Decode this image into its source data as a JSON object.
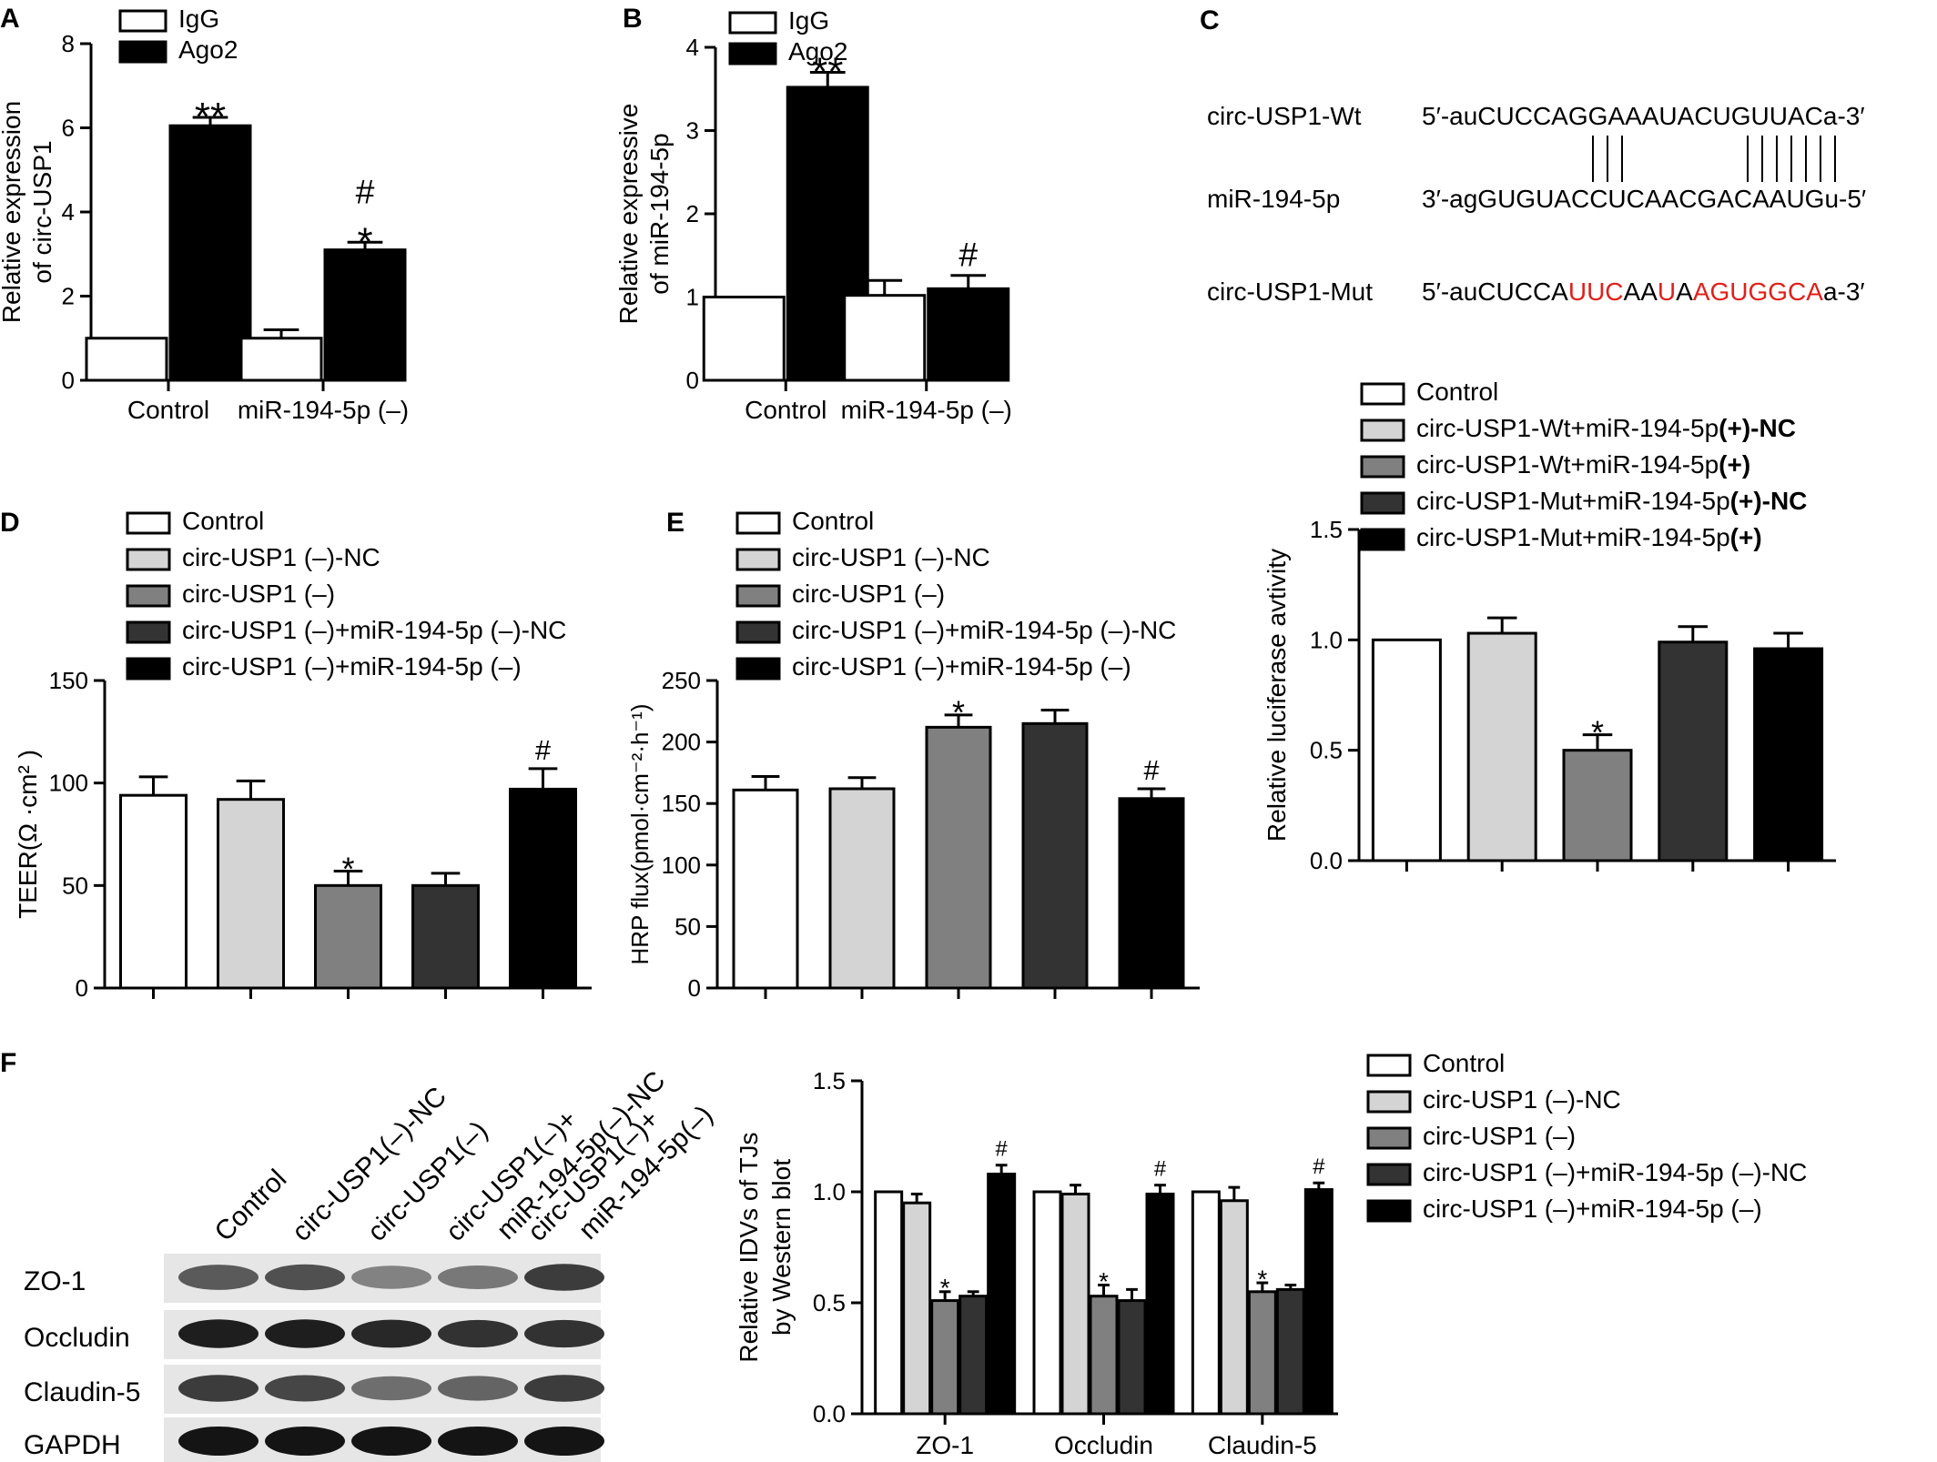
{
  "colors": {
    "white": "#ffffff",
    "light": "#d4d4d4",
    "mid": "#808080",
    "dark": "#333333",
    "black": "#000000",
    "mutation": "#e0201b"
  },
  "chart_data": [
    {
      "panel": "A",
      "type": "bar",
      "categories": [
        "Control",
        "miR-194-5p (–)"
      ],
      "series": [
        {
          "name": "IgG",
          "color": "#ffffff",
          "values": [
            1.0,
            1.0
          ],
          "err": [
            0,
            0.2
          ],
          "marks": [
            "",
            ""
          ]
        },
        {
          "name": "Ago2",
          "color": "#000000",
          "values": [
            6.05,
            3.1
          ],
          "err": [
            0.2,
            0.18
          ],
          "marks": [
            "**",
            "#\n*"
          ]
        }
      ],
      "ylabel": [
        "Relative expression",
        "of circ-USP1"
      ],
      "ylim": [
        0,
        8
      ],
      "yticks": [
        0,
        2,
        4,
        6,
        8
      ],
      "legend": "top-left"
    },
    {
      "panel": "B",
      "type": "bar",
      "categories": [
        "Control",
        "miR-194-5p (–)"
      ],
      "series": [
        {
          "name": "IgG",
          "color": "#ffffff",
          "values": [
            1.0,
            1.02
          ],
          "err": [
            0,
            0.18
          ],
          "marks": [
            "",
            ""
          ]
        },
        {
          "name": "Ago2",
          "color": "#000000",
          "values": [
            3.52,
            1.1
          ],
          "err": [
            0.18,
            0.16
          ],
          "marks": [
            "**",
            "#"
          ]
        }
      ],
      "ylabel": [
        "Relative expressive",
        "of miR-194-5p"
      ],
      "ylim": [
        0,
        4
      ],
      "yticks": [
        0,
        1,
        2,
        3,
        4
      ],
      "legend": "top-left"
    },
    {
      "panel": "D",
      "type": "bar",
      "categories": [
        "Control",
        "circ-USP1 (–)-NC",
        "circ-USP1 (–)",
        "circ-USP1 (–)+miR-194-5p (–)-NC",
        "circ-USP1 (–)+miR-194-5p (–)"
      ],
      "colors": [
        "#ffffff",
        "#d4d4d4",
        "#808080",
        "#333333",
        "#000000"
      ],
      "values": [
        94,
        92,
        50,
        50,
        97
      ],
      "err": [
        9,
        9,
        7,
        6,
        10
      ],
      "marks": [
        "",
        "",
        "*",
        "",
        "#"
      ],
      "ylabel": [
        "TEER(Ω ·cm² )"
      ],
      "ylim": [
        0,
        150
      ],
      "yticks": [
        0,
        50,
        100,
        150
      ],
      "legend": "top"
    },
    {
      "panel": "E",
      "type": "bar",
      "categories": [
        "Control",
        "circ-USP1 (–)-NC",
        "circ-USP1 (–)",
        "circ-USP1 (–)+miR-194-5p (–)-NC",
        "circ-USP1 (–)+miR-194-5p (–)"
      ],
      "colors": [
        "#ffffff",
        "#d4d4d4",
        "#808080",
        "#333333",
        "#000000"
      ],
      "values": [
        161,
        162,
        212,
        215,
        154
      ],
      "err": [
        11,
        9,
        10,
        11,
        8
      ],
      "marks": [
        "",
        "",
        "*",
        "",
        "#"
      ],
      "ylabel": [
        "HRP flux(pmol·cm⁻²·h⁻¹)"
      ],
      "ylim": [
        0,
        250
      ],
      "yticks": [
        0,
        50,
        100,
        150,
        200,
        250
      ],
      "legend": "top"
    },
    {
      "panel": "",
      "type": "bar",
      "categories": [
        "Control",
        "circ-USP1-Wt+miR-194-5p (+)-NC",
        "circ-USP1-Wt+miR-194-5p (+)",
        "circ-USP1-Mut+miR-194-5p (+)-NC",
        "circ-USP1-Mut+miR-194-5p (+)"
      ],
      "colors": [
        "#ffffff",
        "#d4d4d4",
        "#808080",
        "#333333",
        "#000000"
      ],
      "values": [
        1.0,
        1.03,
        0.5,
        0.99,
        0.96
      ],
      "err": [
        0,
        0.07,
        0.07,
        0.07,
        0.07
      ],
      "marks": [
        "",
        "",
        "*",
        "",
        ""
      ],
      "ylabel": [
        "Relative luciferase avtivity"
      ],
      "ylim": [
        0,
        1.5
      ],
      "yticks": [
        "0.0",
        "0.5",
        "1.0",
        "1.5"
      ],
      "legend": "top"
    },
    {
      "panel": "F",
      "type": "bar",
      "categories": [
        "ZO-1",
        "Occludin",
        "Claudin-5"
      ],
      "series": [
        {
          "name": "Control",
          "color": "#ffffff",
          "values": [
            1.0,
            1.0,
            1.0
          ],
          "err": [
            0,
            0,
            0
          ],
          "marks": [
            "",
            "",
            ""
          ]
        },
        {
          "name": "circ-USP1 (–)-NC",
          "color": "#d4d4d4",
          "values": [
            0.95,
            0.99,
            0.96
          ],
          "err": [
            0.04,
            0.04,
            0.06
          ],
          "marks": [
            "",
            "",
            ""
          ]
        },
        {
          "name": "circ-USP1 (–)",
          "color": "#808080",
          "values": [
            0.51,
            0.53,
            0.55
          ],
          "err": [
            0.04,
            0.05,
            0.04
          ],
          "marks": [
            "*",
            "*",
            "*"
          ]
        },
        {
          "name": "circ-USP1 (–)+miR-194-5p (–)-NC",
          "color": "#333333",
          "values": [
            0.53,
            0.51,
            0.56
          ],
          "err": [
            0.02,
            0.05,
            0.02
          ],
          "marks": [
            "",
            "",
            ""
          ]
        },
        {
          "name": "circ-USP1 (–)+miR-194-5p (–)",
          "color": "#000000",
          "values": [
            1.08,
            0.99,
            1.01
          ],
          "err": [
            0.04,
            0.04,
            0.03
          ],
          "marks": [
            "#",
            "#",
            "#"
          ]
        }
      ],
      "ylabel": [
        "Relative IDVs of TJs",
        "by Western blot"
      ],
      "ylim": [
        0,
        1.5
      ],
      "yticks": [
        "0.0",
        "0.5",
        "1.0",
        "1.5"
      ],
      "legend": "right"
    }
  ],
  "panel_c": {
    "label": "C",
    "rows": [
      {
        "name": "circ-USP1-Wt",
        "seq": [
          {
            "t": "5′-auCUCCAGGAAAUACUGUUACa-3′",
            "c": "#000000"
          }
        ]
      },
      {
        "name": "miR-194-5p",
        "seq": [
          {
            "t": "3′-agGUGUACCUCAACGACAAUGu-5′",
            "c": "#000000"
          }
        ]
      },
      {
        "name": "circ-USP1-Mut",
        "seq": [
          {
            "t": "5′-auCUCCA",
            "c": "#000000"
          },
          {
            "t": "UUC",
            "c": "#e0201b"
          },
          {
            "t": "AA",
            "c": "#000000"
          },
          {
            "t": "U",
            "c": "#e0201b"
          },
          {
            "t": "A",
            "c": "#000000"
          },
          {
            "t": "AGUGGCA",
            "c": "#e0201b"
          },
          {
            "t": "a-3′",
            "c": "#000000"
          }
        ]
      }
    ]
  },
  "panel_f_blot": {
    "label": "F",
    "lanes": [
      [
        "Control"
      ],
      [
        "circ-USP1(–)-NC"
      ],
      [
        "circ-USP1(–)"
      ],
      [
        "circ-USP1(–)+",
        "miR-194-5p(–)-NC"
      ],
      [
        "circ-USP1(–)+",
        "miR-194-5p(–)"
      ]
    ],
    "rows": [
      "ZO-1",
      "Occludin",
      "Claudin-5",
      "GAPDH"
    ],
    "intensity": [
      [
        0.65,
        0.7,
        0.45,
        0.5,
        0.8
      ],
      [
        0.95,
        0.95,
        0.9,
        0.85,
        0.85
      ],
      [
        0.8,
        0.75,
        0.55,
        0.6,
        0.8
      ],
      [
        1.0,
        1.0,
        1.0,
        1.0,
        1.0
      ]
    ]
  },
  "luciferase_legend": [
    {
      "a": "Control",
      "b": ""
    },
    {
      "a": "circ-USP1-Wt+miR-194-5p",
      "b": "(+)-NC"
    },
    {
      "a": "circ-USP1-Wt+miR-194-5p",
      "b": "(+)"
    },
    {
      "a": "circ-USP1-Mut+miR-194-5p",
      "b": "(+)-NC"
    },
    {
      "a": "circ-USP1-Mut+miR-194-5p",
      "b": "(+)"
    }
  ]
}
